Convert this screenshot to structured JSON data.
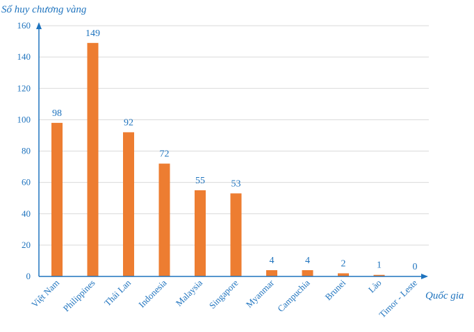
{
  "chart_data": {
    "type": "bar",
    "ylabel": "Số huy chương vàng",
    "xlabel": "Quốc gia",
    "categories": [
      "Việt Nam",
      "Philippines",
      "Thái Lan",
      "Indonesia",
      "Malaysia",
      "Singapore",
      "Myanmar",
      "Campuchia",
      "Brunei",
      "Lào",
      "Timor - Leste"
    ],
    "values": [
      98,
      149,
      92,
      72,
      55,
      53,
      4,
      4,
      2,
      1,
      0
    ],
    "ylim": [
      0,
      160
    ],
    "yticks": [
      0,
      20,
      40,
      60,
      80,
      100,
      120,
      140,
      160
    ],
    "grid": true,
    "bar_color": "#ed7d31",
    "axis_color": "#1e73be",
    "grid_color": "#d9d9d9"
  }
}
